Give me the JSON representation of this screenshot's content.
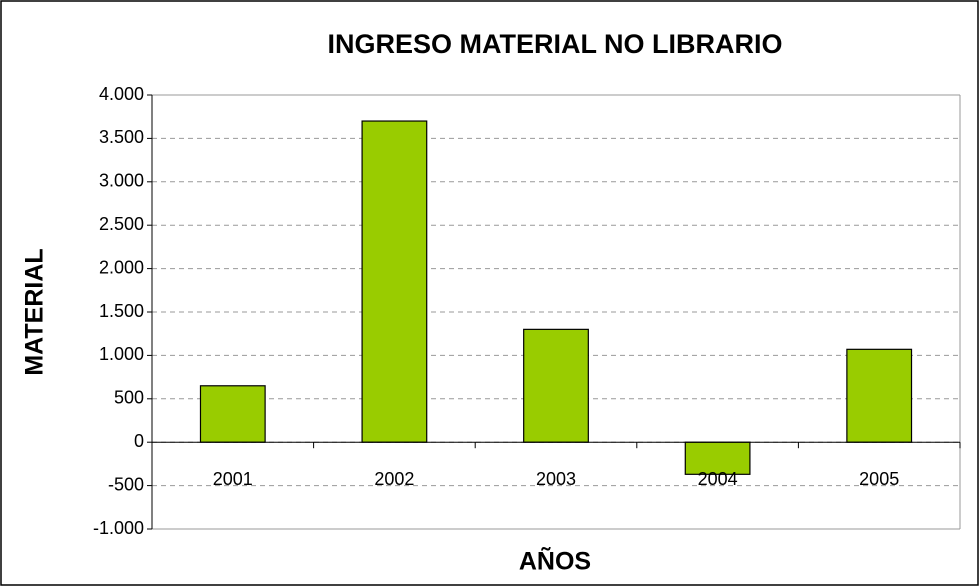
{
  "chart_data": {
    "type": "bar",
    "title": "INGRESO MATERIAL NO LIBRARIO",
    "x_label": "AÑOS",
    "y_label": "MATERIAL",
    "categories": [
      "2001",
      "2002",
      "2003",
      "2004",
      "2005"
    ],
    "values": [
      650,
      3700,
      1300,
      -370,
      1070
    ],
    "color": "#99cc00",
    "ylim": [
      -1000,
      4000
    ],
    "yticks": [
      {
        "value": -1000,
        "label": "-1.000"
      },
      -500,
      0,
      500,
      {
        "value": 1000,
        "label": "1.000"
      },
      {
        "value": 1500,
        "label": "1.500"
      },
      {
        "value": 2000,
        "label": "2.000"
      },
      {
        "value": 2500,
        "label": "2.500"
      },
      {
        "value": 3000,
        "label": "3.000"
      },
      {
        "value": 3500,
        "label": "3.500"
      },
      {
        "value": 4000,
        "label": "4.000"
      }
    ],
    "grid": true
  }
}
